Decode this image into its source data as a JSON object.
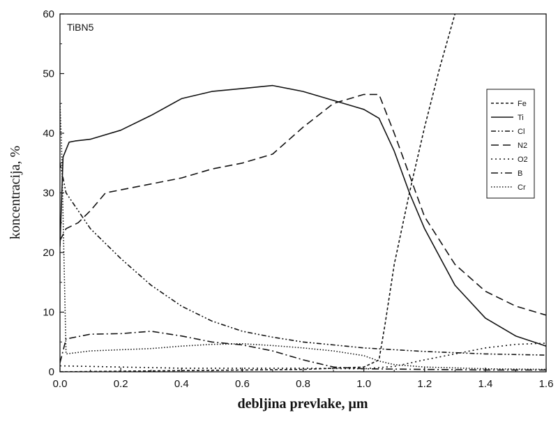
{
  "chart_data": {
    "type": "line",
    "annotation": "TiBN5",
    "xlabel": "debljina prevlake, μm",
    "ylabel": "koncentracija, %",
    "xlim": [
      0,
      1.6
    ],
    "ylim": [
      0,
      60
    ],
    "xticks": [
      0.0,
      0.2,
      0.4,
      0.6,
      0.8,
      1.0,
      1.2,
      1.4,
      1.6
    ],
    "xtick_labels": [
      "0.0",
      "0.2",
      "0.4",
      "0.6",
      "0.8",
      "1.0",
      "1.2",
      "1.4",
      "1.6"
    ],
    "yticks": [
      0,
      10,
      20,
      30,
      40,
      50,
      60
    ],
    "ytick_labels": [
      "0",
      "10",
      "20",
      "30",
      "40",
      "50",
      "60"
    ],
    "grid": false,
    "legend_position": "right",
    "series": [
      {
        "name": "Fe",
        "dash": "short-dash",
        "points": [
          [
            0,
            0
          ],
          [
            0.4,
            0.2
          ],
          [
            0.8,
            0.4
          ],
          [
            1.0,
            0.8
          ],
          [
            1.05,
            2
          ],
          [
            1.07,
            8
          ],
          [
            1.1,
            18
          ],
          [
            1.15,
            30
          ],
          [
            1.2,
            41
          ],
          [
            1.25,
            51
          ],
          [
            1.3,
            60
          ]
        ]
      },
      {
        "name": "Ti",
        "dash": "solid",
        "points": [
          [
            0,
            21
          ],
          [
            0.01,
            36
          ],
          [
            0.03,
            38.5
          ],
          [
            0.05,
            38.7
          ],
          [
            0.1,
            39
          ],
          [
            0.2,
            40.5
          ],
          [
            0.3,
            43
          ],
          [
            0.4,
            45.8
          ],
          [
            0.5,
            47
          ],
          [
            0.6,
            47.5
          ],
          [
            0.7,
            48
          ],
          [
            0.8,
            47
          ],
          [
            0.9,
            45.5
          ],
          [
            1.0,
            44
          ],
          [
            1.05,
            42.5
          ],
          [
            1.1,
            37
          ],
          [
            1.15,
            30
          ],
          [
            1.2,
            24
          ],
          [
            1.3,
            14.5
          ],
          [
            1.4,
            9
          ],
          [
            1.5,
            6
          ],
          [
            1.6,
            4.3
          ]
        ]
      },
      {
        "name": "Cl",
        "dash": "dash-dot-dot",
        "points": [
          [
            0,
            35
          ],
          [
            0.02,
            30
          ],
          [
            0.1,
            24
          ],
          [
            0.2,
            19
          ],
          [
            0.3,
            14.5
          ],
          [
            0.4,
            11
          ],
          [
            0.5,
            8.5
          ],
          [
            0.6,
            6.8
          ],
          [
            0.7,
            5.8
          ],
          [
            0.8,
            5
          ],
          [
            0.9,
            4.5
          ],
          [
            1.0,
            4
          ],
          [
            1.2,
            3.4
          ],
          [
            1.4,
            3
          ],
          [
            1.6,
            2.8
          ]
        ]
      },
      {
        "name": "N2",
        "dash": "long-dash",
        "points": [
          [
            0,
            22
          ],
          [
            0.02,
            24
          ],
          [
            0.06,
            25
          ],
          [
            0.1,
            27
          ],
          [
            0.15,
            30
          ],
          [
            0.3,
            31.5
          ],
          [
            0.4,
            32.5
          ],
          [
            0.5,
            34
          ],
          [
            0.6,
            35
          ],
          [
            0.7,
            36.5
          ],
          [
            0.8,
            41
          ],
          [
            0.9,
            45
          ],
          [
            1.0,
            46.5
          ],
          [
            1.05,
            46.5
          ],
          [
            1.1,
            40
          ],
          [
            1.15,
            33
          ],
          [
            1.2,
            26
          ],
          [
            1.3,
            18
          ],
          [
            1.4,
            13.5
          ],
          [
            1.5,
            11
          ],
          [
            1.6,
            9.5
          ]
        ]
      },
      {
        "name": "O2",
        "dash": "dotted",
        "points": [
          [
            0,
            1
          ],
          [
            0.4,
            0.6
          ],
          [
            0.8,
            0.6
          ],
          [
            1.0,
            0.5
          ],
          [
            1.1,
            0.9
          ],
          [
            1.2,
            2
          ],
          [
            1.3,
            3
          ],
          [
            1.4,
            4
          ],
          [
            1.5,
            4.6
          ],
          [
            1.6,
            4.8
          ]
        ]
      },
      {
        "name": "B",
        "dash": "dash-dot",
        "points": [
          [
            0,
            1.5
          ],
          [
            0.02,
            5.5
          ],
          [
            0.1,
            6.3
          ],
          [
            0.2,
            6.4
          ],
          [
            0.3,
            6.8
          ],
          [
            0.4,
            6
          ],
          [
            0.5,
            5
          ],
          [
            0.6,
            4.5
          ],
          [
            0.7,
            3.5
          ],
          [
            0.8,
            2
          ],
          [
            0.9,
            0.8
          ],
          [
            1.0,
            0.5
          ],
          [
            1.2,
            0.4
          ],
          [
            1.4,
            0.3
          ],
          [
            1.6,
            0.3
          ]
        ]
      },
      {
        "name": "Cr",
        "dash": "fine-dotted",
        "points": [
          [
            0,
            45
          ],
          [
            0.005,
            38
          ],
          [
            0.02,
            3
          ],
          [
            0.1,
            3.5
          ],
          [
            0.2,
            3.7
          ],
          [
            0.3,
            3.9
          ],
          [
            0.4,
            4.3
          ],
          [
            0.5,
            4.6
          ],
          [
            0.6,
            4.7
          ],
          [
            0.7,
            4.4
          ],
          [
            0.8,
            4
          ],
          [
            0.9,
            3.5
          ],
          [
            1.0,
            2.7
          ],
          [
            1.05,
            1.8
          ],
          [
            1.1,
            1.2
          ],
          [
            1.2,
            0.8
          ],
          [
            1.4,
            0.5
          ],
          [
            1.6,
            0.4
          ]
        ]
      }
    ]
  }
}
